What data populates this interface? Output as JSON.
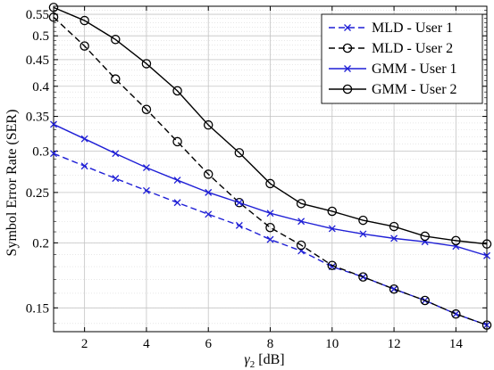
{
  "chart_data": {
    "type": "line",
    "title": "",
    "xlabel": "γ",
    "xlabel_sub": "2",
    "xlabel_unit": " [dB]",
    "ylabel": "Symbol Error Rate (SER)",
    "y_scale": "log",
    "grid": true,
    "legend_position": "top-right",
    "xlim": [
      1,
      15
    ],
    "ylim": [
      0.135,
      0.57
    ],
    "x_ticks": [
      2,
      4,
      6,
      8,
      10,
      12,
      14
    ],
    "y_ticks": [
      0.15,
      0.2,
      0.25,
      0.3,
      0.35,
      0.4,
      0.45,
      0.5,
      0.55
    ],
    "y_tick_labels": [
      "0.15",
      "0.2",
      "0.25",
      "0.3",
      "0.35",
      "0.4",
      "0.45",
      "0.5",
      "0.55"
    ],
    "x": [
      1,
      2,
      3,
      4,
      5,
      6,
      7,
      8,
      9,
      10,
      11,
      12,
      13,
      14,
      15
    ],
    "series": [
      {
        "name": "MLD - User 1",
        "color": "#1f1fd6",
        "dash": "dashed",
        "marker": "x",
        "values": [
          0.297,
          0.281,
          0.266,
          0.252,
          0.239,
          0.227,
          0.216,
          0.203,
          0.193,
          0.18,
          0.172,
          0.163,
          0.155,
          0.146,
          0.139
        ]
      },
      {
        "name": "MLD - User 2",
        "color": "#000000",
        "dash": "dashed",
        "marker": "o",
        "values": [
          0.543,
          0.478,
          0.413,
          0.361,
          0.313,
          0.271,
          0.239,
          0.214,
          0.198,
          0.181,
          0.172,
          0.163,
          0.155,
          0.146,
          0.139
        ]
      },
      {
        "name": "GMM - User 1",
        "color": "#1f1fd6",
        "dash": "solid",
        "marker": "x",
        "values": [
          0.338,
          0.317,
          0.297,
          0.279,
          0.264,
          0.25,
          0.239,
          0.228,
          0.22,
          0.213,
          0.208,
          0.204,
          0.201,
          0.197,
          0.189
        ]
      },
      {
        "name": "GMM - User 2",
        "color": "#000000",
        "dash": "solid",
        "marker": "o",
        "values": [
          0.567,
          0.535,
          0.492,
          0.442,
          0.392,
          0.337,
          0.298,
          0.26,
          0.238,
          0.23,
          0.221,
          0.215,
          0.206,
          0.202,
          0.199
        ]
      }
    ]
  }
}
